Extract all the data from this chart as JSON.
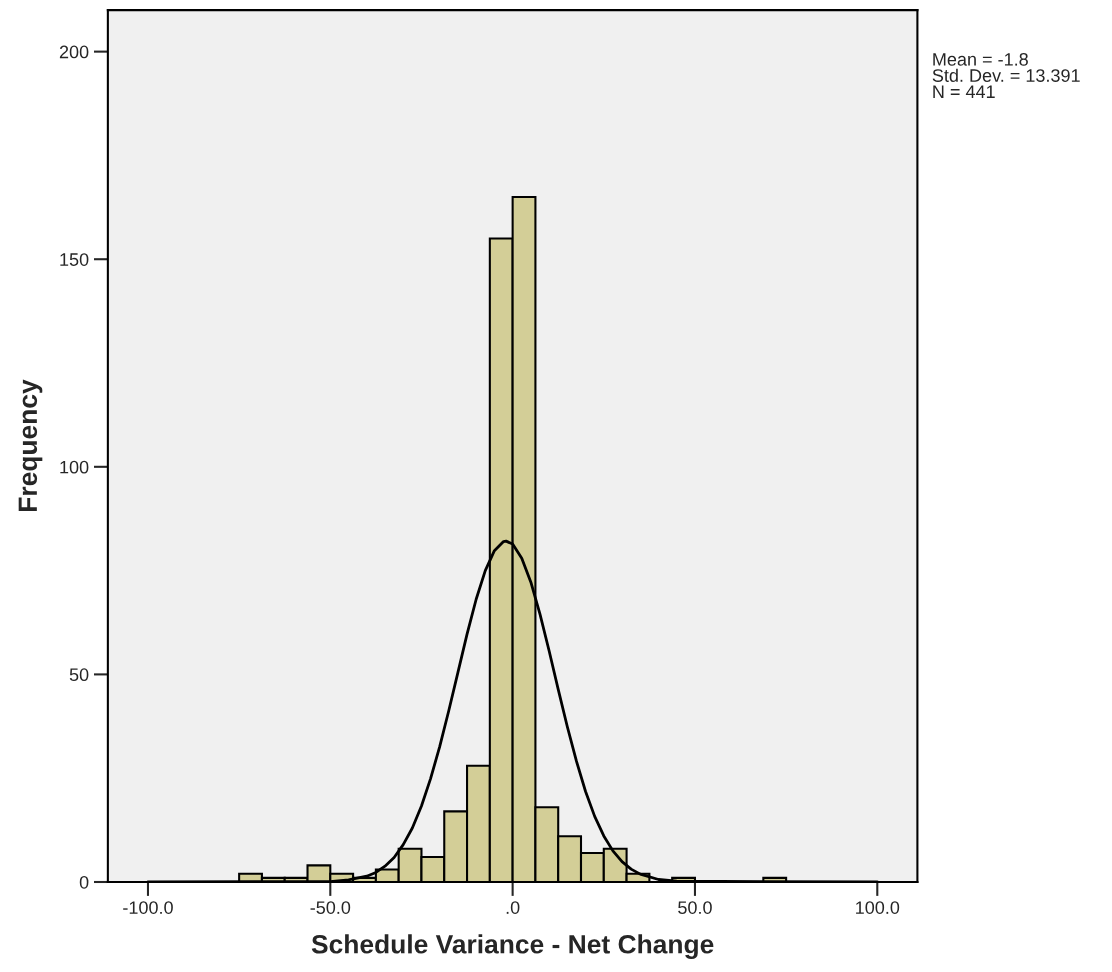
{
  "chart_data": {
    "type": "histogram",
    "xlabel": "Schedule Variance - Net Change",
    "ylabel": "Frequency",
    "annotations": [
      "Mean = -1.8\nStd. Dev. = 13.391\nN = 441"
    ],
    "bins": [
      -75,
      -68.75,
      -62.5,
      -56.25,
      -50,
      -43.75,
      -37.5,
      -31.25,
      -25,
      -18.75,
      -12.5,
      -6.25,
      0,
      6.25,
      12.5,
      18.75,
      25,
      31.25,
      37.5,
      43.75,
      50,
      56.25,
      62.5,
      68.75,
      75
    ],
    "values": [
      2,
      1,
      1,
      4,
      2,
      1,
      3,
      8,
      6,
      17,
      28,
      155,
      165,
      18,
      11,
      7,
      8,
      2,
      0,
      1,
      0,
      0,
      0,
      1
    ],
    "color": "#d3ce97",
    "series": [
      {
        "type": "line",
        "color": "#000000",
        "x": [
          -100,
          -50,
          -45,
          -40,
          -37.5,
          -35,
          -32.5,
          -30,
          -27.5,
          -25,
          -22.5,
          -20,
          -17.5,
          -15,
          -12.5,
          -10,
          -7.5,
          -5,
          -2.5,
          -1.8,
          0,
          2.5,
          5,
          7.5,
          10,
          12.5,
          15,
          17.5,
          20,
          22.5,
          25,
          27.5,
          30,
          32.5,
          35,
          40,
          45,
          100
        ],
        "values": [
          0,
          0.1,
          0.5,
          1.4,
          2.3,
          3.8,
          5.9,
          9.0,
          13.0,
          18.3,
          24.9,
          32.6,
          41.3,
          50.5,
          59.7,
          68.1,
          75.0,
          79.8,
          82.0,
          82.1,
          81.4,
          78.0,
          72.2,
          64.5,
          55.7,
          46.4,
          37.4,
          29.1,
          21.8,
          15.8,
          11.1,
          7.5,
          4.9,
          3.1,
          1.9,
          0.6,
          0.2,
          0
        ]
      }
    ],
    "xlim": [
      -111,
      111
    ],
    "xticks": [
      {
        "value": -100,
        "label": "-100.0"
      },
      {
        "value": -50,
        "label": "-50.0"
      },
      {
        "value": 0,
        "label": ".0"
      },
      {
        "value": 50,
        "label": "50.0"
      },
      {
        "value": 100,
        "label": "100.0"
      }
    ],
    "ylim": [
      0,
      210
    ],
    "yticks": [
      0,
      50,
      100,
      150,
      200
    ],
    "grid": false
  }
}
